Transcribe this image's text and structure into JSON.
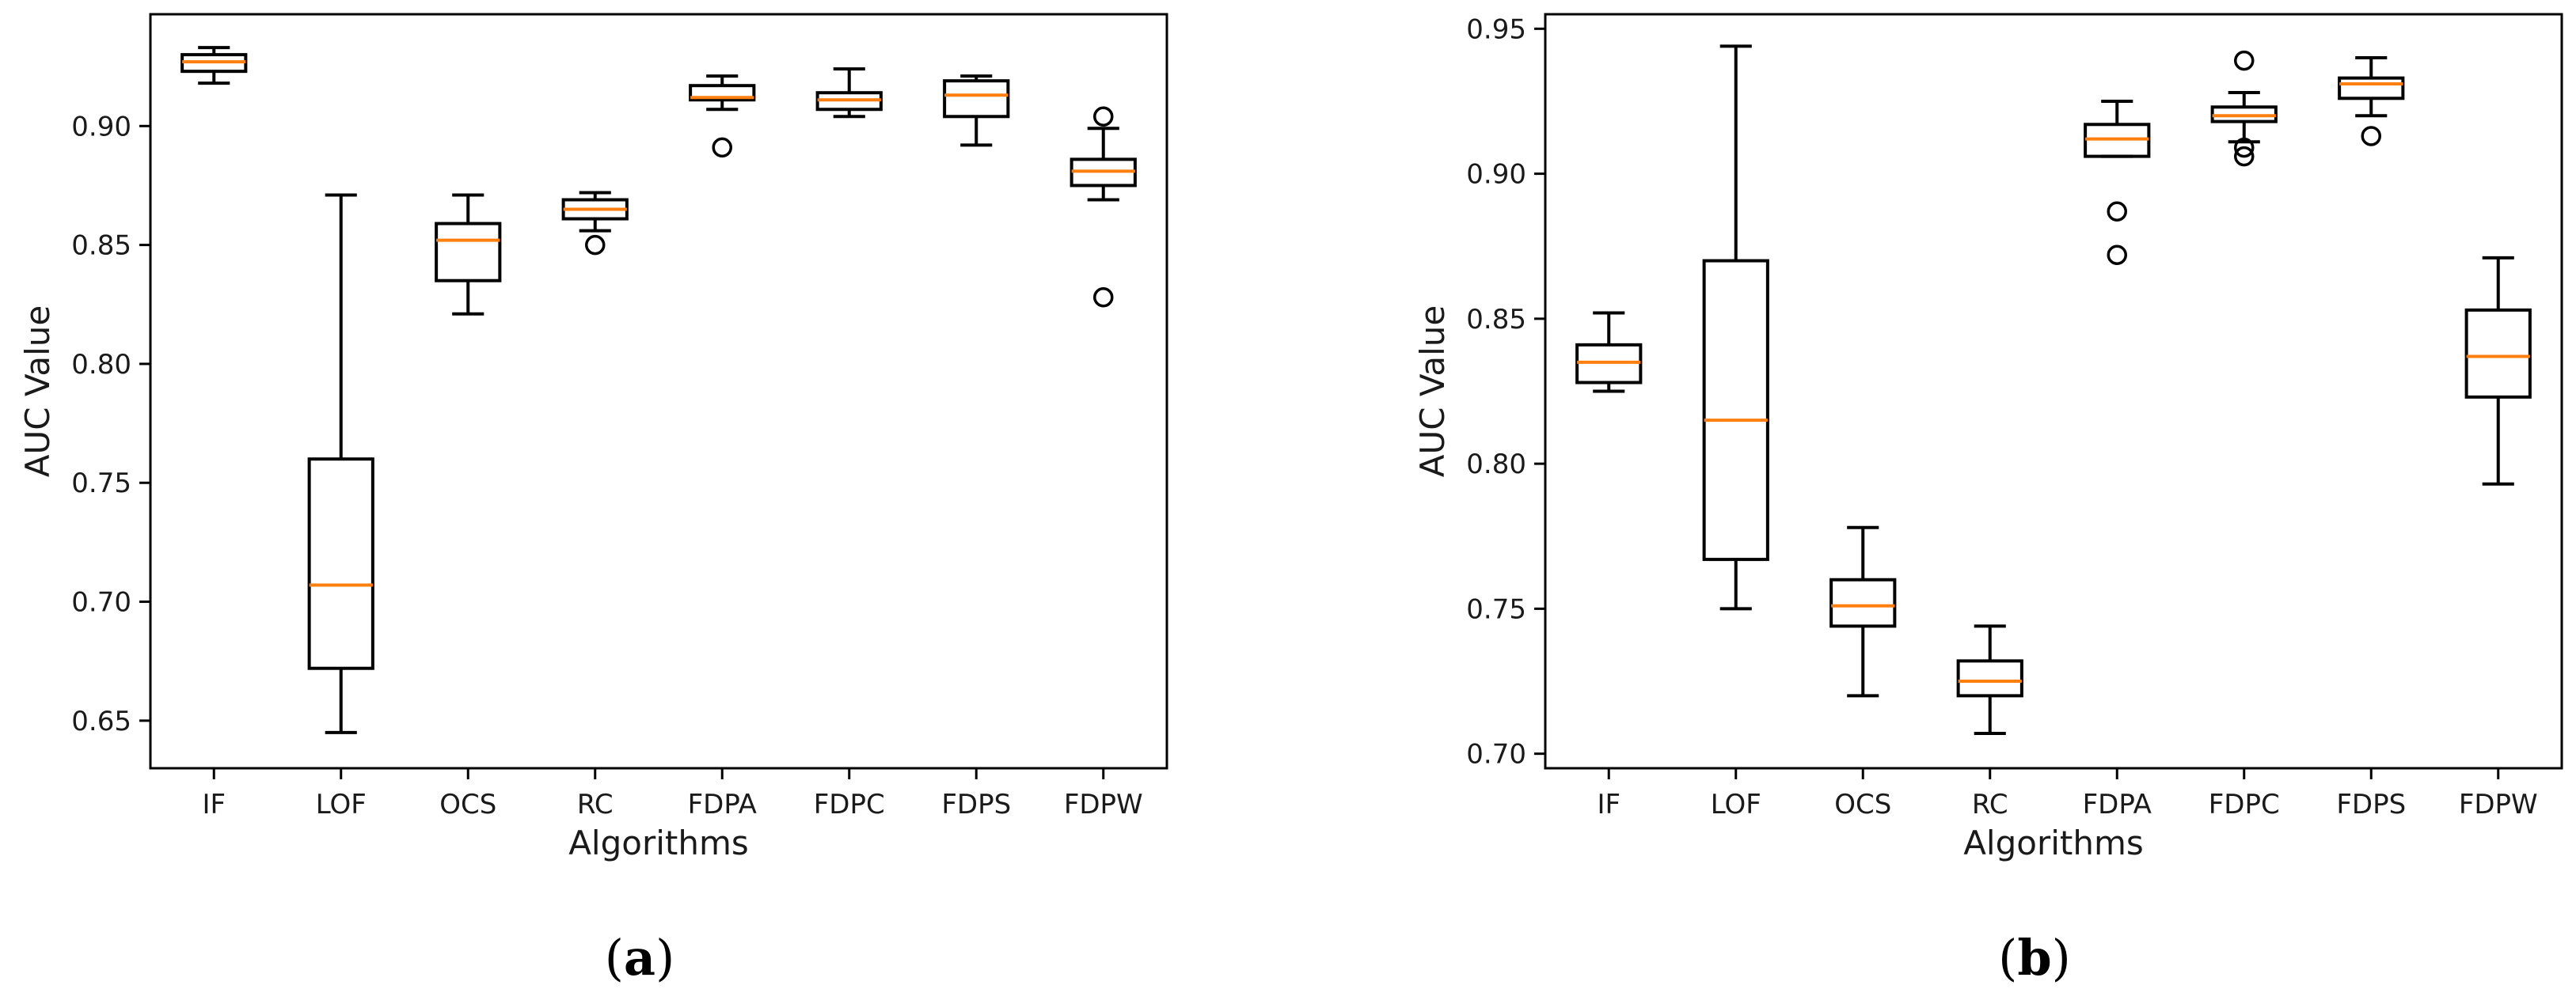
{
  "colors": {
    "box": "#000000",
    "median": "#ff7f0e",
    "axis": "#000000",
    "background": "#ffffff"
  },
  "chart_data": [
    {
      "type": "box",
      "panel_label": "a",
      "xlabel": "Algorithms",
      "ylabel": "AUC Value",
      "ylim": [
        0.63,
        0.947
      ],
      "yticks": [
        "0.65",
        "0.70",
        "0.75",
        "0.80",
        "0.85",
        "0.90"
      ],
      "categories": [
        "IF",
        "LOF",
        "OCS",
        "RC",
        "FDPA",
        "FDPC",
        "FDPS",
        "FDPW"
      ],
      "boxes": [
        {
          "whislo": 0.918,
          "q1": 0.923,
          "med": 0.927,
          "q3": 0.93,
          "whishi": 0.933,
          "fliers": []
        },
        {
          "whislo": 0.645,
          "q1": 0.672,
          "med": 0.707,
          "q3": 0.76,
          "whishi": 0.871,
          "fliers": []
        },
        {
          "whislo": 0.821,
          "q1": 0.835,
          "med": 0.852,
          "q3": 0.859,
          "whishi": 0.871,
          "fliers": []
        },
        {
          "whislo": 0.856,
          "q1": 0.861,
          "med": 0.865,
          "q3": 0.869,
          "whishi": 0.872,
          "fliers": [
            0.85
          ]
        },
        {
          "whislo": 0.907,
          "q1": 0.911,
          "med": 0.912,
          "q3": 0.917,
          "whishi": 0.921,
          "fliers": [
            0.891
          ]
        },
        {
          "whislo": 0.904,
          "q1": 0.907,
          "med": 0.911,
          "q3": 0.914,
          "whishi": 0.924,
          "fliers": []
        },
        {
          "whislo": 0.892,
          "q1": 0.904,
          "med": 0.913,
          "q3": 0.919,
          "whishi": 0.921,
          "fliers": []
        },
        {
          "whislo": 0.869,
          "q1": 0.875,
          "med": 0.881,
          "q3": 0.886,
          "whishi": 0.899,
          "fliers": [
            0.904,
            0.828
          ]
        }
      ]
    },
    {
      "type": "box",
      "panel_label": "b",
      "xlabel": "Algorithms",
      "ylabel": "AUC Value",
      "ylim": [
        0.695,
        0.955
      ],
      "yticks": [
        "0.70",
        "0.75",
        "0.80",
        "0.85",
        "0.90",
        "0.95"
      ],
      "categories": [
        "IF",
        "LOF",
        "OCS",
        "RC",
        "FDPA",
        "FDPC",
        "FDPS",
        "FDPW"
      ],
      "boxes": [
        {
          "whislo": 0.825,
          "q1": 0.828,
          "med": 0.835,
          "q3": 0.841,
          "whishi": 0.852,
          "fliers": []
        },
        {
          "whislo": 0.75,
          "q1": 0.767,
          "med": 0.815,
          "q3": 0.87,
          "whishi": 0.944,
          "fliers": []
        },
        {
          "whislo": 0.72,
          "q1": 0.744,
          "med": 0.751,
          "q3": 0.76,
          "whishi": 0.778,
          "fliers": []
        },
        {
          "whislo": 0.707,
          "q1": 0.72,
          "med": 0.725,
          "q3": 0.732,
          "whishi": 0.744,
          "fliers": []
        },
        {
          "whislo": 0.906,
          "q1": 0.906,
          "med": 0.912,
          "q3": 0.917,
          "whishi": 0.925,
          "fliers": [
            0.887,
            0.872
          ]
        },
        {
          "whislo": 0.911,
          "q1": 0.918,
          "med": 0.92,
          "q3": 0.923,
          "whishi": 0.928,
          "fliers": [
            0.939,
            0.909,
            0.906
          ]
        },
        {
          "whislo": 0.92,
          "q1": 0.926,
          "med": 0.931,
          "q3": 0.933,
          "whishi": 0.94,
          "fliers": [
            0.913
          ]
        },
        {
          "whislo": 0.793,
          "q1": 0.823,
          "med": 0.837,
          "q3": 0.853,
          "whishi": 0.871,
          "fliers": []
        }
      ]
    }
  ]
}
